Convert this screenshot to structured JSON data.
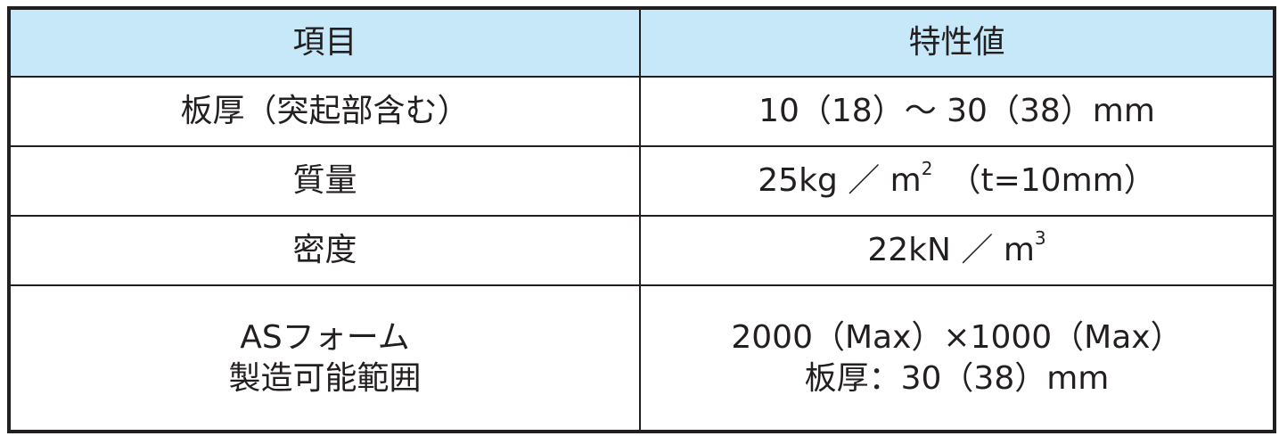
{
  "colors": {
    "header_bg": "#c6e8f8",
    "border": "#231f20"
  },
  "header": {
    "item": "項目",
    "value": "特性値"
  },
  "rows": [
    {
      "item": "板厚（突起部含む）",
      "value": "10（18）～ 30（38）mm"
    },
    {
      "item": "質量",
      "value_main": "25kg ／ m",
      "value_sup": "2",
      "value_tail": "　（t=10mm）"
    },
    {
      "item": "密度",
      "value_main": "22kN ／ m",
      "value_sup": "3"
    },
    {
      "item_lines": [
        "ASフォーム",
        "製造可能範囲"
      ],
      "value_lines": [
        "2000（Max）×1000（Max）",
        "板厚：30（38）mm"
      ]
    }
  ]
}
